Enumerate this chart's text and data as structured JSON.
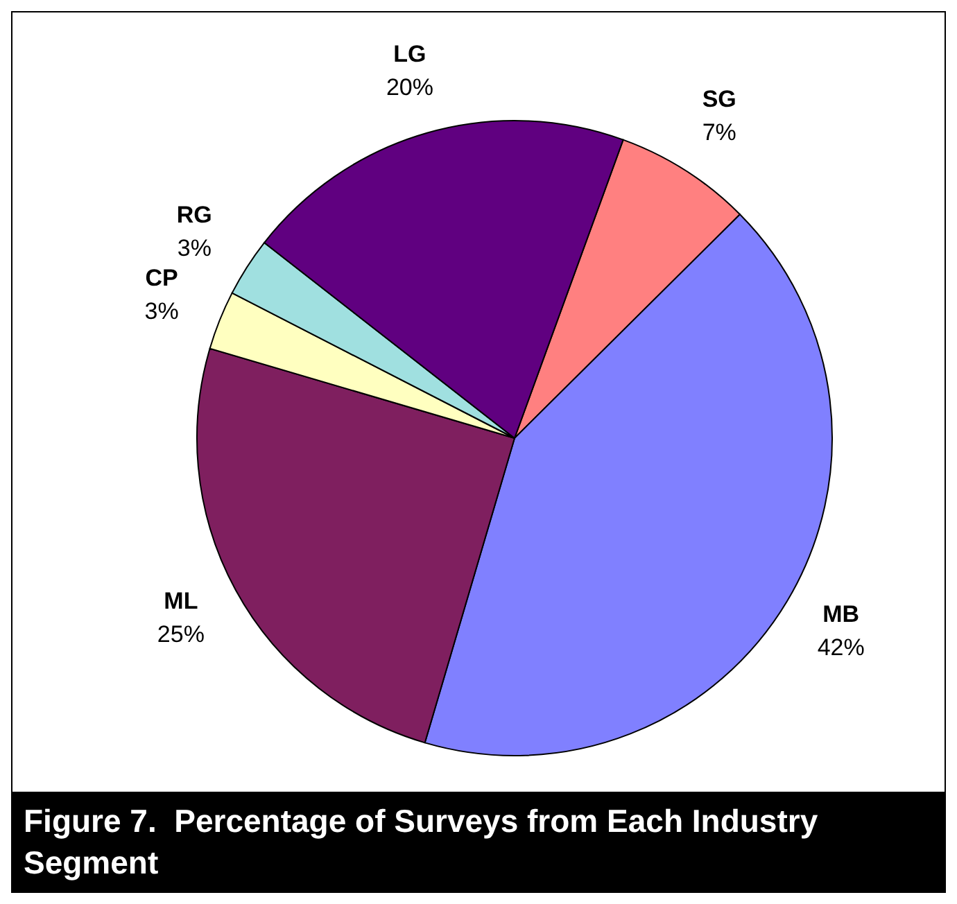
{
  "chart_data": {
    "type": "pie",
    "title": "Figure 7.  Percentage of Surveys from Each Industry Segment",
    "categories": [
      "SG",
      "MB",
      "ML",
      "CP",
      "RG",
      "LG"
    ],
    "values": [
      7,
      42,
      25,
      3,
      3,
      20
    ],
    "value_labels": [
      "7%",
      "42%",
      "25%",
      "3%",
      "3%",
      "20%"
    ],
    "colors": [
      "#ff8080",
      "#8080ff",
      "#7f1f5f",
      "#ffffc0",
      "#a0e0e0",
      "#600080"
    ]
  }
}
